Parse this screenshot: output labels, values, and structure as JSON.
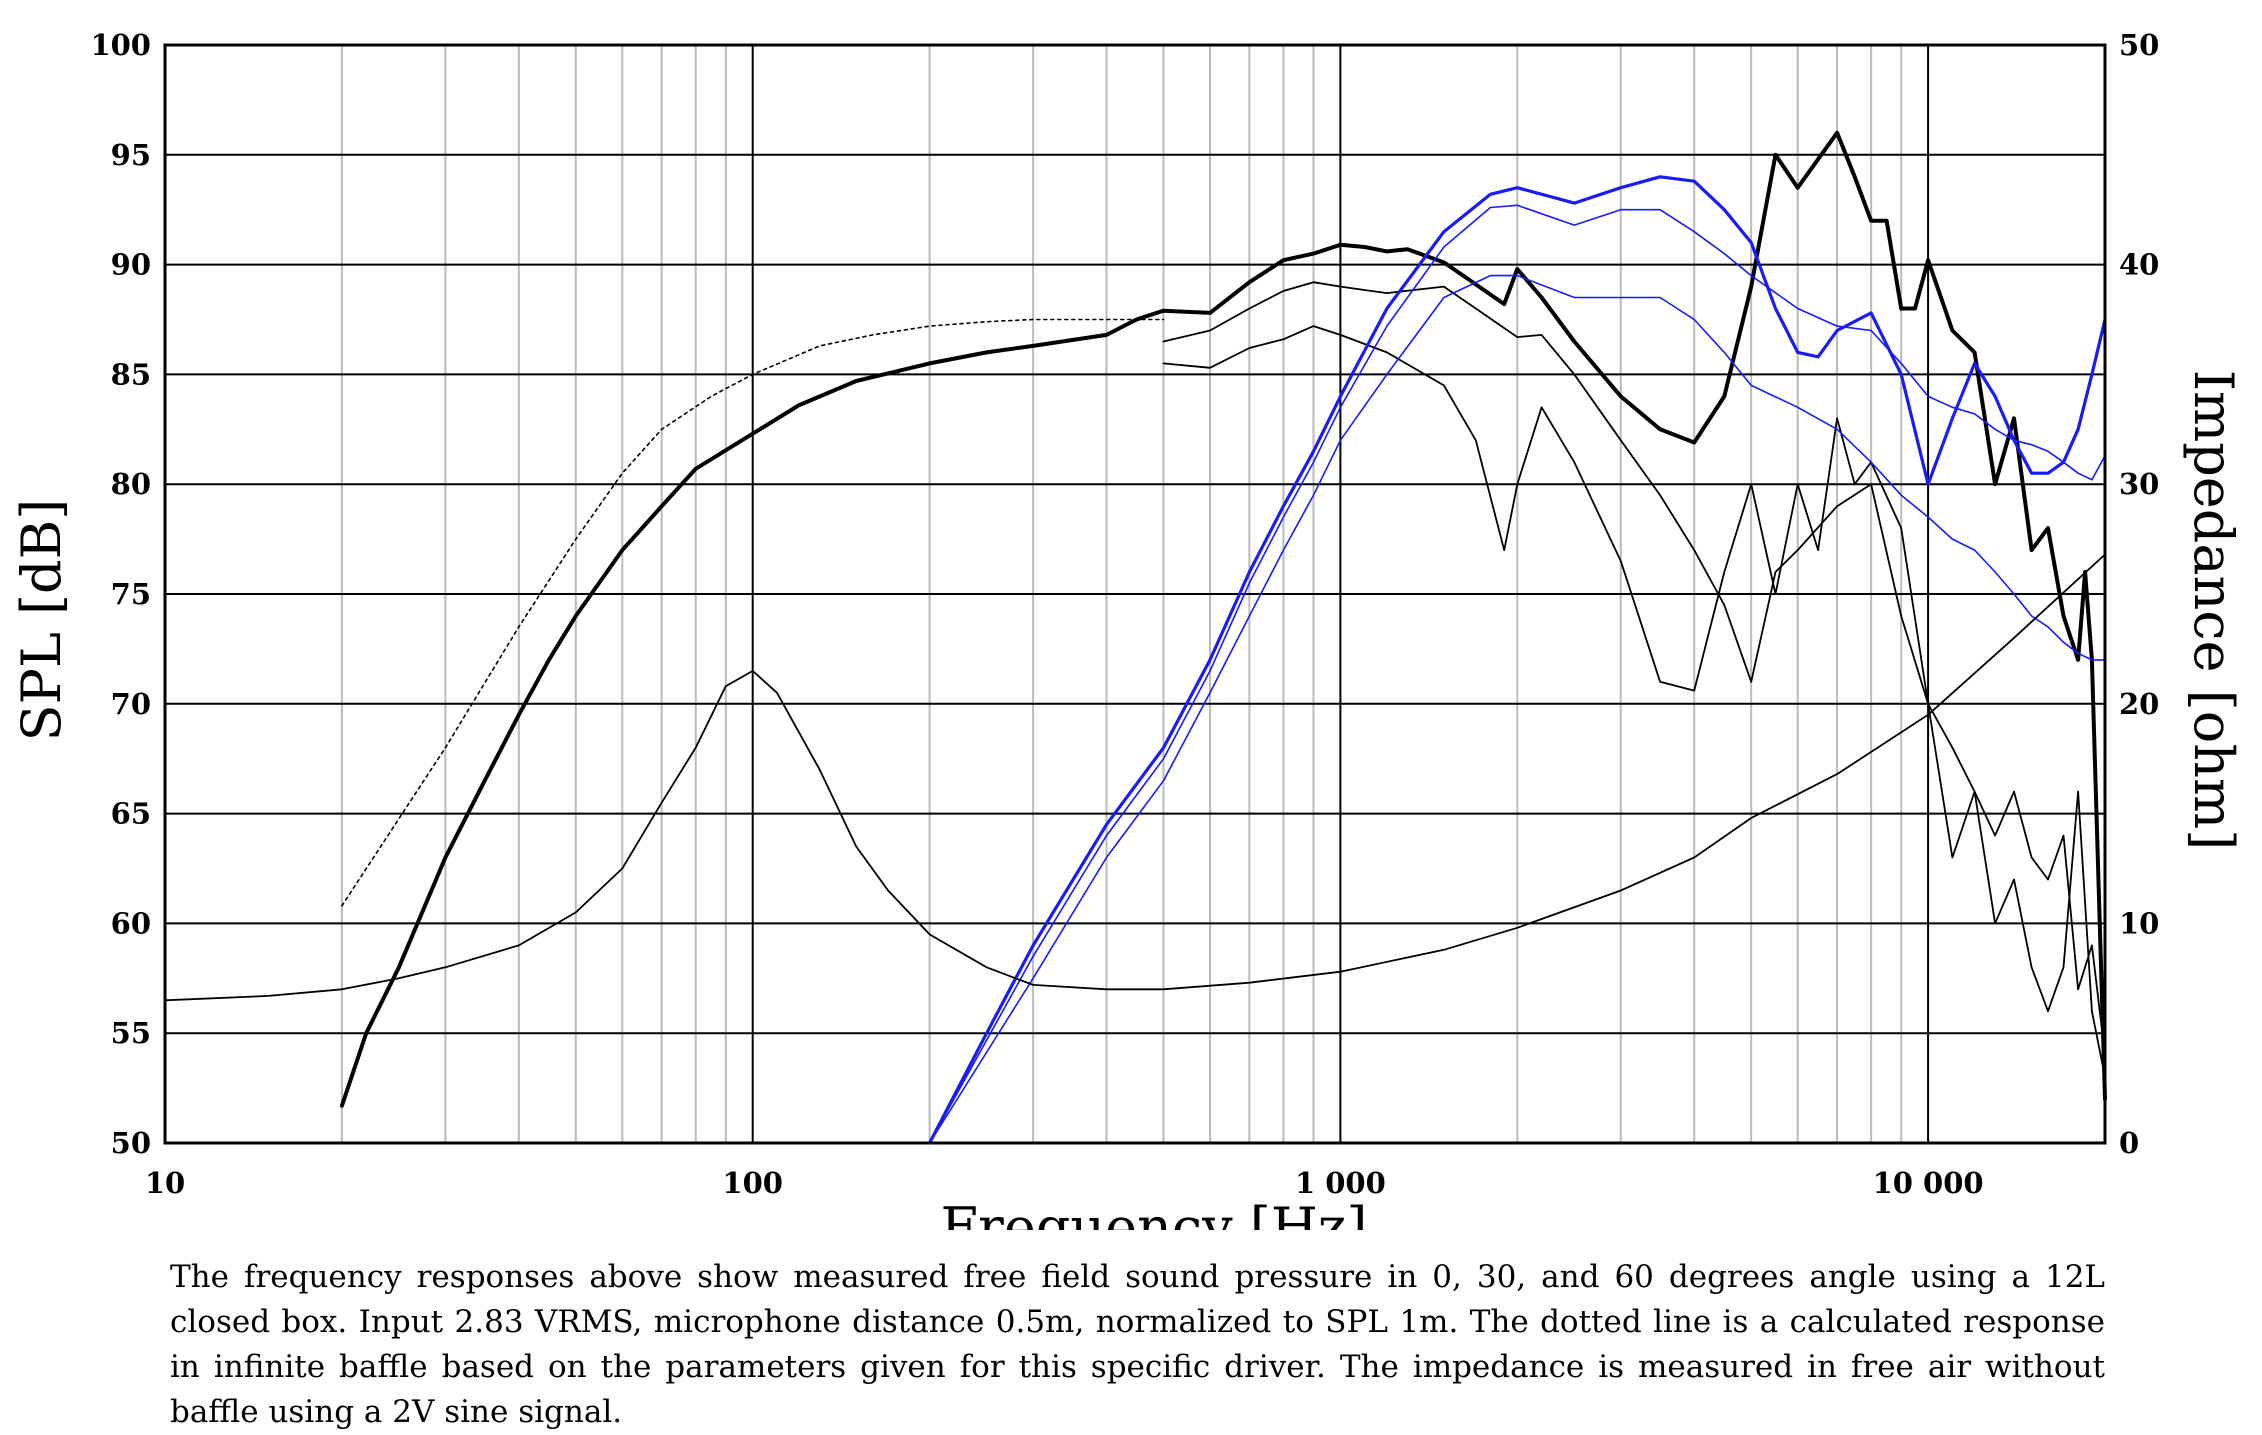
{
  "chart_data": {
    "type": "line",
    "xlabel": "Frequency [Hz]",
    "ylabel": "SPL [dB]",
    "y2label": "Impedance [ohm]",
    "x_scale": "log",
    "xlim": [
      10,
      20000
    ],
    "ylim": [
      50,
      100
    ],
    "y2lim": [
      0,
      50
    ],
    "grid": true,
    "x_ticks": [
      10,
      100,
      1000,
      10000
    ],
    "x_tick_labels": [
      "10",
      "100",
      "1 000",
      "10 000"
    ],
    "y_ticks": [
      50,
      55,
      60,
      65,
      70,
      75,
      80,
      85,
      90,
      95,
      100
    ],
    "y_tick_labels": [
      "50",
      "55",
      "60",
      "65",
      "70",
      "75",
      "80",
      "85",
      "90",
      "95",
      "100"
    ],
    "y2_ticks": [
      0,
      10,
      20,
      30,
      40,
      50
    ],
    "y2_tick_labels": [
      "0",
      "10",
      "20",
      "30",
      "40",
      "50"
    ],
    "colors": {
      "black": "#000000",
      "blue": "#1a1aff",
      "grid": "#000000",
      "minor_grid": "#bbbbbb"
    },
    "series": [
      {
        "axis": "left",
        "color": "#000000",
        "style": "dotted",
        "width": 1.6,
        "points": [
          [
            20,
            60.8
          ],
          [
            30,
            68
          ],
          [
            40,
            73.5
          ],
          [
            50,
            77.5
          ],
          [
            60,
            80.5
          ],
          [
            70,
            82.5
          ],
          [
            85,
            84
          ],
          [
            100,
            85
          ],
          [
            130,
            86.3
          ],
          [
            160,
            86.8
          ],
          [
            200,
            87.2
          ],
          [
            250,
            87.4
          ],
          [
            300,
            87.5
          ],
          [
            400,
            87.5
          ],
          [
            500,
            87.5
          ]
        ]
      },
      {
        "axis": "left",
        "color": "#000000",
        "style": "solid",
        "width": 4,
        "points": [
          [
            20,
            51.7
          ],
          [
            22,
            55
          ],
          [
            25,
            58
          ],
          [
            30,
            63
          ],
          [
            35,
            66.5
          ],
          [
            40,
            69.5
          ],
          [
            45,
            72
          ],
          [
            50,
            74
          ],
          [
            60,
            77
          ],
          [
            70,
            79
          ],
          [
            80,
            80.7
          ],
          [
            100,
            82.3
          ],
          [
            120,
            83.6
          ],
          [
            150,
            84.7
          ],
          [
            200,
            85.5
          ],
          [
            250,
            86
          ],
          [
            300,
            86.3
          ],
          [
            400,
            86.8
          ],
          [
            450,
            87.5
          ],
          [
            500,
            87.9
          ],
          [
            600,
            87.8
          ],
          [
            700,
            89.2
          ],
          [
            800,
            90.2
          ],
          [
            900,
            90.5
          ],
          [
            1000,
            90.9
          ],
          [
            1100,
            90.8
          ],
          [
            1200,
            90.6
          ],
          [
            1300,
            90.7
          ],
          [
            1500,
            90.1
          ],
          [
            1700,
            89.1
          ],
          [
            1900,
            88.2
          ],
          [
            2000,
            89.8
          ],
          [
            2200,
            88.5
          ],
          [
            2500,
            86.5
          ],
          [
            3000,
            84
          ],
          [
            3500,
            82.5
          ],
          [
            4000,
            81.9
          ],
          [
            4500,
            84
          ],
          [
            5000,
            89
          ],
          [
            5500,
            95
          ],
          [
            6000,
            93.5
          ],
          [
            7000,
            96
          ],
          [
            7500,
            94
          ],
          [
            8000,
            92
          ],
          [
            8500,
            92
          ],
          [
            9000,
            88
          ],
          [
            9500,
            88
          ],
          [
            10000,
            90.2
          ],
          [
            11000,
            87
          ],
          [
            12000,
            86
          ],
          [
            13000,
            80
          ],
          [
            14000,
            83
          ],
          [
            15000,
            77
          ],
          [
            16000,
            78
          ],
          [
            17000,
            74
          ],
          [
            18000,
            72
          ],
          [
            18500,
            76
          ],
          [
            19000,
            72
          ],
          [
            20000,
            52
          ]
        ]
      },
      {
        "axis": "left",
        "color": "#000000",
        "style": "solid",
        "width": 1.8,
        "points": [
          [
            500,
            86.5
          ],
          [
            600,
            87
          ],
          [
            700,
            88
          ],
          [
            800,
            88.8
          ],
          [
            900,
            89.2
          ],
          [
            1000,
            89
          ],
          [
            1200,
            88.7
          ],
          [
            1500,
            89
          ],
          [
            1700,
            88
          ],
          [
            2000,
            86.7
          ],
          [
            2200,
            86.8
          ],
          [
            2500,
            85
          ],
          [
            3000,
            82
          ],
          [
            3500,
            79.5
          ],
          [
            4000,
            77
          ],
          [
            4500,
            74.5
          ],
          [
            5000,
            71
          ],
          [
            5500,
            76
          ],
          [
            6000,
            77
          ],
          [
            7000,
            79
          ],
          [
            8000,
            80
          ],
          [
            9000,
            74
          ],
          [
            10000,
            70
          ],
          [
            11000,
            68
          ],
          [
            12000,
            66
          ],
          [
            13000,
            64
          ],
          [
            14000,
            66
          ],
          [
            15000,
            63
          ],
          [
            16000,
            62
          ],
          [
            17000,
            64
          ],
          [
            18000,
            57
          ],
          [
            19000,
            59
          ],
          [
            20000,
            54
          ]
        ]
      },
      {
        "axis": "left",
        "color": "#000000",
        "style": "solid",
        "width": 1.8,
        "points": [
          [
            500,
            85.5
          ],
          [
            600,
            85.3
          ],
          [
            700,
            86.2
          ],
          [
            800,
            86.6
          ],
          [
            900,
            87.2
          ],
          [
            1000,
            86.8
          ],
          [
            1200,
            86
          ],
          [
            1500,
            84.5
          ],
          [
            1700,
            82
          ],
          [
            1900,
            77
          ],
          [
            2000,
            80
          ],
          [
            2200,
            83.5
          ],
          [
            2500,
            81
          ],
          [
            3000,
            76.5
          ],
          [
            3500,
            71
          ],
          [
            4000,
            70.6
          ],
          [
            4500,
            76
          ],
          [
            5000,
            80
          ],
          [
            5500,
            75
          ],
          [
            6000,
            80
          ],
          [
            6500,
            77
          ],
          [
            7000,
            83
          ],
          [
            7500,
            80
          ],
          [
            8000,
            81
          ],
          [
            9000,
            78
          ],
          [
            10000,
            70
          ],
          [
            11000,
            63
          ],
          [
            12000,
            66
          ],
          [
            13000,
            60
          ],
          [
            14000,
            62
          ],
          [
            15000,
            58
          ],
          [
            16000,
            56
          ],
          [
            17000,
            58
          ],
          [
            18000,
            66
          ],
          [
            19000,
            56
          ],
          [
            20000,
            53
          ]
        ]
      },
      {
        "axis": "left",
        "color": "#1a1aff",
        "style": "solid",
        "width": 3.2,
        "points": [
          [
            200,
            50
          ],
          [
            250,
            55
          ],
          [
            300,
            59
          ],
          [
            400,
            64.5
          ],
          [
            500,
            68
          ],
          [
            600,
            72
          ],
          [
            700,
            76
          ],
          [
            800,
            79
          ],
          [
            900,
            81.5
          ],
          [
            1000,
            84
          ],
          [
            1200,
            88
          ],
          [
            1500,
            91.5
          ],
          [
            1800,
            93.2
          ],
          [
            2000,
            93.5
          ],
          [
            2500,
            92.8
          ],
          [
            3000,
            93.5
          ],
          [
            3500,
            94
          ],
          [
            4000,
            93.8
          ],
          [
            4500,
            92.5
          ],
          [
            5000,
            91
          ],
          [
            5500,
            88
          ],
          [
            6000,
            86
          ],
          [
            6500,
            85.8
          ],
          [
            7000,
            87
          ],
          [
            8000,
            87.8
          ],
          [
            9000,
            85
          ],
          [
            10000,
            80
          ],
          [
            11000,
            83
          ],
          [
            12000,
            85.5
          ],
          [
            13000,
            84
          ],
          [
            14000,
            82
          ],
          [
            15000,
            80.5
          ],
          [
            16000,
            80.5
          ],
          [
            17000,
            81
          ],
          [
            18000,
            82.5
          ],
          [
            19000,
            85
          ],
          [
            20000,
            87.5
          ]
        ]
      },
      {
        "axis": "left",
        "color": "#1a1aff",
        "style": "solid",
        "width": 1.6,
        "points": [
          [
            200,
            50
          ],
          [
            300,
            58.5
          ],
          [
            400,
            64
          ],
          [
            500,
            67.5
          ],
          [
            600,
            71.5
          ],
          [
            700,
            75.5
          ],
          [
            800,
            78.5
          ],
          [
            900,
            81
          ],
          [
            1000,
            83.5
          ],
          [
            1200,
            87.2
          ],
          [
            1500,
            90.8
          ],
          [
            1800,
            92.6
          ],
          [
            2000,
            92.7
          ],
          [
            2500,
            91.8
          ],
          [
            3000,
            92.5
          ],
          [
            3500,
            92.5
          ],
          [
            4000,
            91.5
          ],
          [
            4500,
            90.5
          ],
          [
            5000,
            89.5
          ],
          [
            6000,
            88
          ],
          [
            7000,
            87.2
          ],
          [
            8000,
            87
          ],
          [
            9000,
            85.5
          ],
          [
            10000,
            84
          ],
          [
            11000,
            83.5
          ],
          [
            12000,
            83.2
          ],
          [
            13000,
            82.5
          ],
          [
            14000,
            82
          ],
          [
            15000,
            81.8
          ],
          [
            16000,
            81.5
          ],
          [
            17000,
            81
          ],
          [
            18000,
            80.5
          ],
          [
            19000,
            80.2
          ],
          [
            20000,
            81.3
          ]
        ]
      },
      {
        "axis": "left",
        "color": "#1a1aff",
        "style": "solid",
        "width": 1.6,
        "points": [
          [
            200,
            50
          ],
          [
            300,
            57.5
          ],
          [
            400,
            63
          ],
          [
            500,
            66.5
          ],
          [
            600,
            70.5
          ],
          [
            700,
            74
          ],
          [
            800,
            77
          ],
          [
            900,
            79.5
          ],
          [
            1000,
            82
          ],
          [
            1200,
            85
          ],
          [
            1500,
            88.5
          ],
          [
            1800,
            89.5
          ],
          [
            2000,
            89.5
          ],
          [
            2500,
            88.5
          ],
          [
            3000,
            88.5
          ],
          [
            3500,
            88.5
          ],
          [
            4000,
            87.5
          ],
          [
            4500,
            86
          ],
          [
            5000,
            84.5
          ],
          [
            6000,
            83.5
          ],
          [
            7000,
            82.5
          ],
          [
            8000,
            81
          ],
          [
            9000,
            79.5
          ],
          [
            10000,
            78.5
          ],
          [
            11000,
            77.5
          ],
          [
            12000,
            77
          ],
          [
            13000,
            76
          ],
          [
            14000,
            75
          ],
          [
            15000,
            74
          ],
          [
            16000,
            73.5
          ],
          [
            17000,
            72.8
          ],
          [
            18000,
            72.3
          ],
          [
            19000,
            72
          ],
          [
            20000,
            72
          ]
        ]
      },
      {
        "axis": "right",
        "color": "#000000",
        "style": "solid",
        "width": 1.8,
        "points": [
          [
            10,
            6.5
          ],
          [
            15,
            6.7
          ],
          [
            20,
            7
          ],
          [
            25,
            7.5
          ],
          [
            30,
            8
          ],
          [
            40,
            9
          ],
          [
            50,
            10.5
          ],
          [
            60,
            12.5
          ],
          [
            70,
            15.5
          ],
          [
            80,
            18
          ],
          [
            90,
            20.8
          ],
          [
            100,
            21.5
          ],
          [
            110,
            20.5
          ],
          [
            130,
            17
          ],
          [
            150,
            13.5
          ],
          [
            170,
            11.5
          ],
          [
            200,
            9.5
          ],
          [
            250,
            8
          ],
          [
            300,
            7.2
          ],
          [
            400,
            7
          ],
          [
            500,
            7
          ],
          [
            700,
            7.3
          ],
          [
            1000,
            7.8
          ],
          [
            1500,
            8.8
          ],
          [
            2000,
            9.8
          ],
          [
            3000,
            11.5
          ],
          [
            4000,
            13
          ],
          [
            5000,
            14.8
          ],
          [
            7000,
            16.8
          ],
          [
            10000,
            19.5
          ],
          [
            14000,
            23
          ],
          [
            20000,
            26.8
          ]
        ]
      }
    ]
  },
  "caption": "The frequency responses above show measured free field sound pressure in 0, 30, and 60 degrees angle using a 12L closed box. Input 2.83 VRMS, microphone distance 0.5m, normalized to SPL 1m. The dotted line is a calculated response in infinite baffle based on the parameters given for this specific driver. The impedance is measured in free air without baffle using a 2V sine signal."
}
